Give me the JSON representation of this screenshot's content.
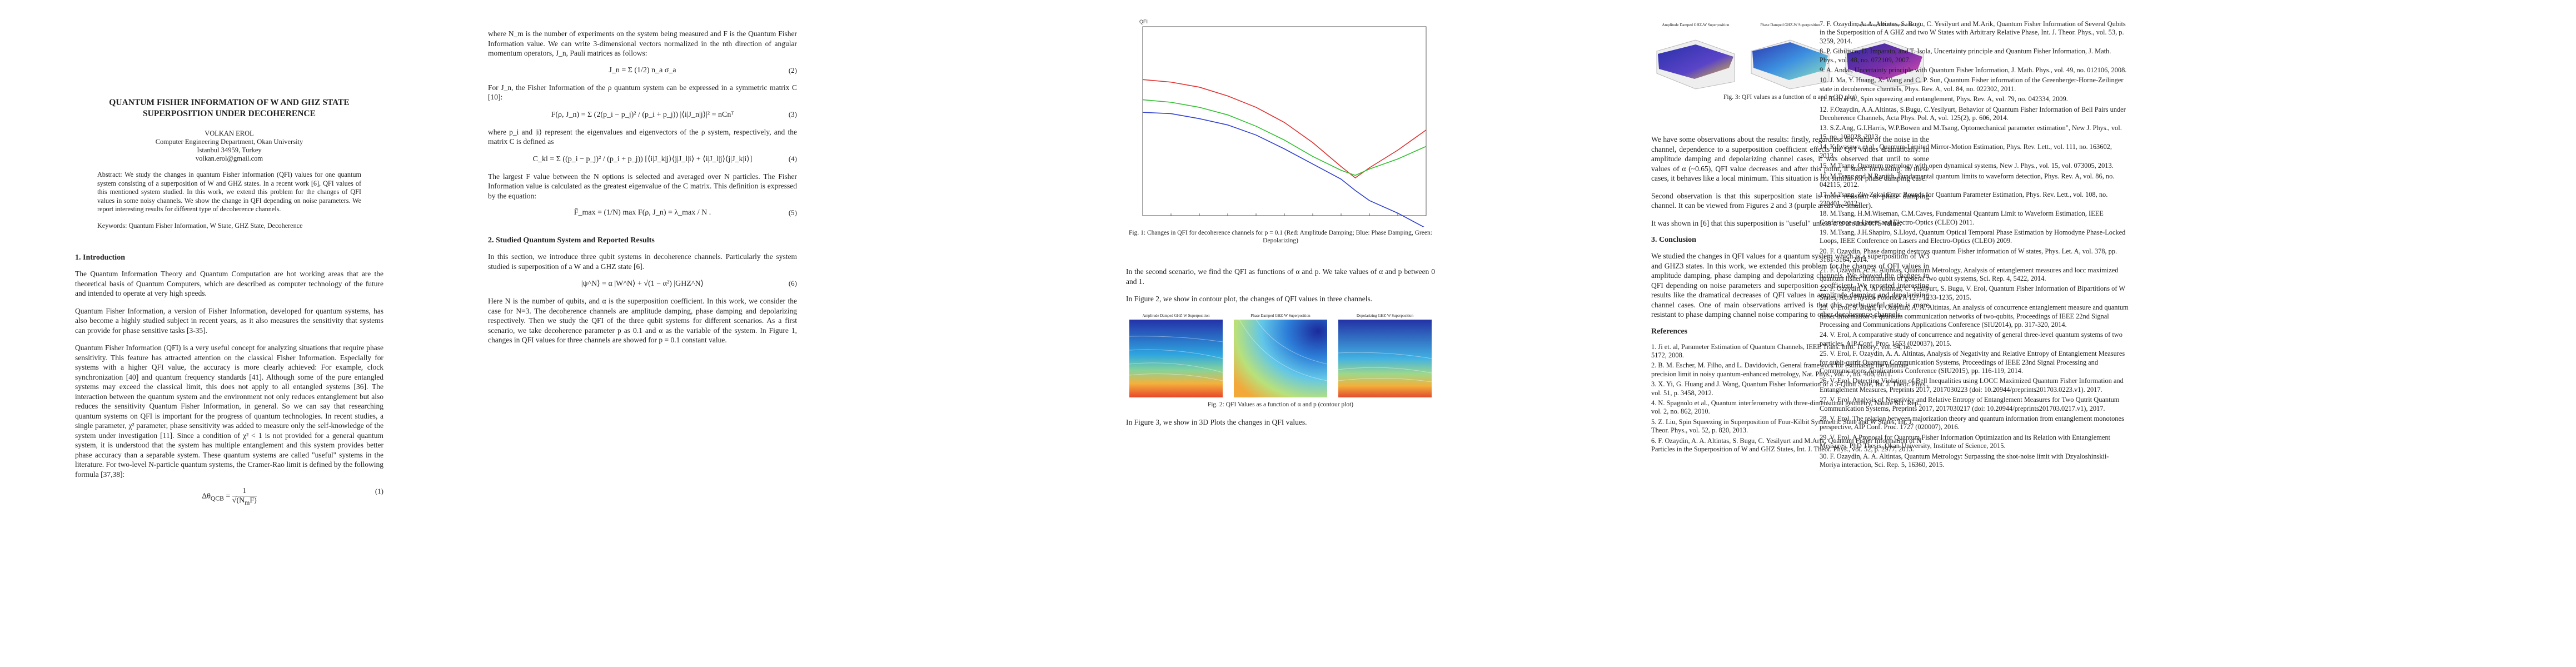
{
  "page1": {
    "title": "QUANTUM FISHER INFORMATION OF W AND GHZ STATE SUPERPOSITION UNDER DECOHERENCE",
    "author_name": "VOLKAN EROL",
    "author_affil1": "Computer Engineering Department, Okan University",
    "author_affil2": "Istanbul 34959, Turkey",
    "author_email": "volkan.erol@gmail.com",
    "abstract": "Abstract: We study the changes in quantum Fisher information (QFI) values for one quantum system consisting of a superposition of W and GHZ states. In a recent work [6], QFI values of this mentioned system studied. In this work, we extend this problem for the changes of QFI values in some noisy channels. We show the change in QFI depending on noise parameters. We report interesting results for different type of decoherence channels.",
    "keywords": "Keywords: Quantum Fisher Information, W State, GHZ State, Decoherence",
    "intro_heading": "1. Introduction",
    "intro_p1": "The Quantum Information Theory and Quantum Computation are hot working areas that are the theoretical basis of Quantum Computers, which are described as computer technology of the future and intended to operate at very high speeds.",
    "intro_p2": "Quantum Fisher Information, a version of Fisher Information, developed for quantum systems, has also become a highly studied subject in recent years, as it also measures the sensitivity that systems can provide for phase sensitive tasks [3-35].",
    "intro_p3": "Quantum Fisher Information (QFI) is a very useful concept for analyzing situations that require phase sensitivity. This feature has attracted attention on the classical Fisher Information. Especially for systems with a higher QFI value, the accuracy is more clearly achieved: For example, clock synchronization [40] and quantum frequency standards [41]. Although some of the pure entangled systems may exceed the classical limit, this does not apply to all entangled systems [36]. The interaction between the quantum system and the environment not only reduces entanglement but also reduces the sensitivity Quantum Fisher Information, in general. So we can say that researching quantum systems on QFI is important for the progress of quantum technologies. In recent studies, a single parameter, χ² parameter, phase sensitivity was added to measure only the self-knowledge of the system under investigation [11]. Since a condition of χ² < 1 is not provided for a general quantum system, it is understood that the system has multiple entanglement and this system provides better phase accuracy than a separable system. These quantum systems are called \"useful\" systems in the literature. For two-level N-particle quantum systems, the Cramer-Rao limit is defined by the following formula [37,38]:",
    "eq1_lhs": "Δθ",
    "eq1_sub": "QCB",
    "eq1_rhs": "=",
    "eq1_num": "1",
    "eq1_den": "√(N",
    "eq1_den2": "m",
    "eq1_den3": "F)",
    "eq1_no": "(1)"
  },
  "page2": {
    "p1": "where N_m is the number of experiments on the system being measured and F is the Quantum Fisher Information value. We can write 3-dimensional vectors normalized in the nth direction of angular momentum operators, J_n, Pauli matrices as follows:",
    "eq2_text": "J_n = Σ (1/2) n_a σ_a",
    "eq2_no": "(2)",
    "p2": "For J_n, the Fisher Information of the ρ quantum system can be expressed in a symmetric matrix C [10]:",
    "eq3_text": "F(ρ, J_n) = Σ (2(p_i − p_j)² / (p_i + p_j)) |⟨i|J_n|j⟩|² = nCnᵀ",
    "eq3_no": "(3)",
    "p3": "where p_i and |i⟩ represent the eigenvalues and eigenvectors of the ρ system, respectively, and the matrix C is defined as",
    "eq4_text": "C_kl = Σ ((p_i − p_j)² / (p_i + p_j)) [⟨i|J_k|j⟩⟨j|J_l|i⟩ + ⟨i|J_l|j⟩⟨j|J_k|i⟩]",
    "eq4_no": "(4)",
    "p4": "The largest F value between the N options is selected and averaged over N particles. The Fisher Information value is calculated as the greatest eigenvalue of the C matrix. This definition is expressed by the equation:",
    "eq5_text": "F̄_max = (1/N) max F(ρ, J_n) = λ_max / N .",
    "eq5_no": "(5)",
    "sec2_heading": "2. Studied Quantum System and Reported Results",
    "p5": "In this section, we introduce three qubit systems in decoherence channels. Particularly the system studied is superposition of a W and a GHZ state [6].",
    "eq6_text": "|ψ^N⟩ = α |W^N⟩ + √(1 − α²) |GHZ^N⟩",
    "eq6_no": "(6)",
    "p6": "Here N is the number of qubits, and α is the superposition coefficient. In this work, we consider the case for N=3. The decoherence channels are amplitude damping, phase damping and depolarizing respectively. Then we study the QFI of the three qubit systems for different scenarios. As a first scenario, we take decoherence parameter p as 0.1 and α as the variable of the system. In Figure 1, changes in QFI values for three channels are showed for p = 0.1 constant value."
  },
  "page3": {
    "fig1_caption": "Fig. 1: Changes in QFI for decoherence channels for p = 0.1 (Red: Amplitude Damping; Blue: Phase Damping, Green: Depolarizing)",
    "p1": "In the second scenario, we find the QFI as functions of α and p. We take values of α and p between 0 and 1.",
    "p2": "In Figure 2, we show in contour plot, the changes of QFI values in three channels.",
    "fig2_titles": [
      "Amplitude Damped GHZ-W Superposition",
      "Phase Damped GHZ-W Superposition",
      "Depolarizing GHZ-W Superposition"
    ],
    "fig2_caption": "Fig. 2: QFI Values as a function of α and p (contour plot)",
    "p3": "In Figure 3, we show in 3D Plots the changes in QFI values."
  },
  "page4": {
    "fig3_titles": [
      "Amplitude Damped GHZ-W Superposition",
      "Phase Damped GHZ-W Superposition",
      "Depolarizing GHZ-W Superposition"
    ],
    "fig3_caption": "Fig. 3: QFI values as a function of α and p (3D plot)",
    "p1": "We have some observations about the results: firstly, regardless the value of the noise in the channel, dependence to a superposition coefficient effects the QFI values dramatically. In amplitude damping and depolarizing channel cases, it was observed that until to some values of α (~0.65), QFI value decreases and after this point, it starts increasing. In these cases, it behaves like a local minimum. This situation is not similar for phase damping case.",
    "p2": "Second observation is that this superposition state is more resistant to phase damping channel. It can be viewed from Figures 2 and 3 (purple areas are smaller).",
    "p3": "It was shown in [6] that this superposition is \"useful\" unless α is around 0.75 value.",
    "sec3_heading": "3. Conclusion",
    "p4": "We studied the changes in QFI values for a quantum system which is a superposition of W3 and GHZ3 states. In this work, we extended this problem for the changes of QFI values in amplitude damping, phase damping and depolarizing channels. We showed the changes in QFI depending on noise parameters and superposition coefficient. We reported interesting results like the dramatical decreases of QFI values in amplitude damping and depolarizing channel cases. One of main observations arrived is that this nearly-useful state is more resistant to phase damping channel noise comparing to other decoherence channels.",
    "refs_heading": "References",
    "refs": [
      "1. Ji et. al, Parameter Estimation of Quantum Channels, IEEE Trans. Info. Theory., vol. 54, no. 5172, 2008.",
      "2. B. M. Escher, M. Filho, and L. Davidovich, General framework for estimating the ultimate precision limit in noisy quantum-enhanced metrology, Nat. Phys., vol. 7, no. 406, 2011.",
      "3. X. Yi, G. Huang and J. Wang, Quantum Fisher Information of a 3-Qubit State, Int. J. Theor. Phys., vol. 51, p. 3458, 2012.",
      "4. N. Spagnolo et al., Quantum interferometry with three-dimensional geometry, Nature Sci. Rep., vol. 2, no. 862, 2010.",
      "5. Z. Liu, Spin Squeezing in Superposition of Four-Kilbit Symmetric State and W States, Int. J. Theor. Phys., vol. 52, p. 820, 2013.",
      "6. F. Ozaydin, A. A. Altintas, S. Bugu, C. Yesilyurt and M.Arik, Quantum Fisher Information of N Particles in the Superposition of W and GHZ States, Int. J. Theor. Phys., vol. 52, p. 2977, 2013."
    ]
  },
  "page5": {
    "refs": [
      "7. F. Ozaydin, A. A. Altintas, S. Bugu, C. Yesilyurt and M.Arik, Quantum Fisher Information of Several Qubits in the Superposition of A GHZ and two W States with Arbitrary Relative Phase, Int. J. Theor. Phys., vol. 53, p. 3259, 2014.",
      "8. P. Gibilisco, D. Imparato, and T. Isola, Uncertainty principle and Quantum Fisher Information, J. Math. Phys., vol. 48, no. 072109, 2007.",
      "9. A. Andai, Uncertainty principle with Quantum Fisher Information, J. Math. Phys., vol. 49, no. 012106, 2008.",
      "10. J. Ma, Y. Huang, X. Wang and C. P. Sun, Quantum Fisher information of the Greenberger-Horne-Zeilinger state in decoherence channels, Phys. Rev. A, vol. 84, no. 022302, 2011.",
      "11. Toth et al., Spin squeezing and entanglement, Phys. Rev. A, vol. 79, no. 042334, 2009.",
      "12. F.Ozaydin, A.A.Altintas, S.Bugu, C.Yesilyurt, Behavior of Quantum Fisher Information of Bell Pairs under Decoherence Channels, Acta Phys. Pol. A, vol. 125(2), p. 606, 2014.",
      "13. S.Z.Ang, G.I.Harris, W.P.Bowen and M.Tsang, Optomechanical parameter estimation\", New J. Phys., vol. 15, no. 103028, 2013.",
      "14. K.Iwasawa et al., Quantum-Limited Mirror-Motion Estimation, Phys. Rev. Lett., vol. 111, no. 163602, 2013.",
      "15. M.Tsang, Quantum metrology with open dynamical systems, New J. Phys., vol. 15, vol. 073005, 2013.",
      "16. M.Tsang and N.Ranjith, Fundamental quantum limits to waveform detection, Phys. Rev. A, vol. 86, no. 042115, 2012.",
      "17. M.Tsang, Ziv-Zakai Error Bounds for Quantum Parameter Estimation, Phys. Rev. Lett., vol. 108, no. 230401, 2012.",
      "18. M.Tsang, H.M.Wiseman, C.M.Caves, Fundamental Quantum Limit to Waveform Estimation, IEEE Conference on Lasers and Electro-Optics (CLEO) 2011.",
      "19. M.Tsang, J.H.Shapiro, S.Lloyd, Quantum Optical Temporal Phase Estimation by Homodyne Phase-Locked Loops, IEEE Conference on Lasers and Electro-Optics (CLEO) 2009.",
      "20. F. Ozaydin, Phase damping destroys quantum Fisher information of W states, Phys. Let. A, vol. 378, pp. 3161-3164, 2014.",
      "21. F. Ozaydin, A. A. Altintas, Quantum Metrology, Analysis of entanglement measures and locc maximized quantum fisher information of general two qubit systems, Sci. Rep. 4, 5422, 2014.",
      "22. F. Ozaydin, A. A. Altintas, C. Yesilyurt, S. Bugu, V. Erol, Quantum Fisher Information of Bipartitions of W States, Acta Physica Polonica A 127, 1233-1235, 2015.",
      "23. V. Erol, S. Bugu, F. Ozaydin, A. A. Altintas, An analysis of concurrence entanglement measure and quantum fisher information of quantum communication networks of two-qubits, Proceedings of IEEE 22nd Signal Processing and Communications Applications Conference (SIU2014), pp. 317-320, 2014.",
      "24. V. Erol, A comparative study of concurrence and negativity of general three-level quantum systems of two particles, AIP Conf. Proc. 1653 (020037), 2015.",
      "25. V. Erol, F. Ozaydin, A. A. Altintas, Analysis of Negativity and Relative Entropy of Entanglement Measures for qubit-qutrit Quantum Communication Systems, Proceedings of IEEE 23nd Signal Processing and Communications Applications Conference (SIU2015), pp. 116-119, 2014.",
      "26. V. Erol, Detecting Violation of Bell Inequalities using LOCC Maximized Quantum Fisher Information and Entanglement Measures, Preprints 2017, 2017030223 (doi: 10.20944/preprints201703.0223.v1). 2017.",
      "27. V. Erol, Analysis of Negativity and Relative Entropy of Entanglement Measures for Two Qutrit Quantum Communication Systems, Preprints 2017, 2017030217 (doi: 10.20944/preprints201703.0217.v1), 2017.",
      "28. V. Erol, The relation between majorization theory and quantum information from entanglement monotones perspective, AIP Conf. Proc. 1727 (020007), 2016.",
      "29. V. Erol, A Proposal for Quantum Fisher Information Optimization and its Relation with Entanglement Measures, PhD Thesis, Okan University, Institute of Science, 2015.",
      "30. F. Ozaydin, A. A. Altintas, Quantum Metrology: Surpassing the shot-noise limit with Dzyaloshinskii-Moriya interaction, Sci. Rep. 5, 16360, 2015."
    ]
  },
  "colors": {
    "red": "#e03030",
    "blue": "#2f3fd0",
    "green": "#30c030"
  },
  "chart_data": {
    "type": "line",
    "title": "",
    "xlabel": "",
    "ylabel": "QFI",
    "xlim": [
      0,
      1
    ],
    "ylim": [
      1.0,
      2.5
    ],
    "x": [
      0,
      0.1,
      0.2,
      0.3,
      0.4,
      0.5,
      0.6,
      0.7,
      0.75,
      0.8,
      0.9,
      1.0
    ],
    "series": [
      {
        "name": "Amplitude Damping",
        "color": "red",
        "values": [
          2.08,
          2.06,
          2.02,
          1.95,
          1.86,
          1.74,
          1.58,
          1.39,
          1.3,
          1.38,
          1.52,
          1.68
        ]
      },
      {
        "name": "Phase Damping",
        "color": "blue",
        "values": [
          1.82,
          1.81,
          1.77,
          1.72,
          1.64,
          1.53,
          1.41,
          1.29,
          1.2,
          1.12,
          1.02,
          0.9
        ]
      },
      {
        "name": "Depolarizing",
        "color": "green",
        "values": [
          1.92,
          1.9,
          1.86,
          1.8,
          1.71,
          1.6,
          1.47,
          1.36,
          1.32,
          1.37,
          1.45,
          1.55
        ]
      }
    ]
  }
}
